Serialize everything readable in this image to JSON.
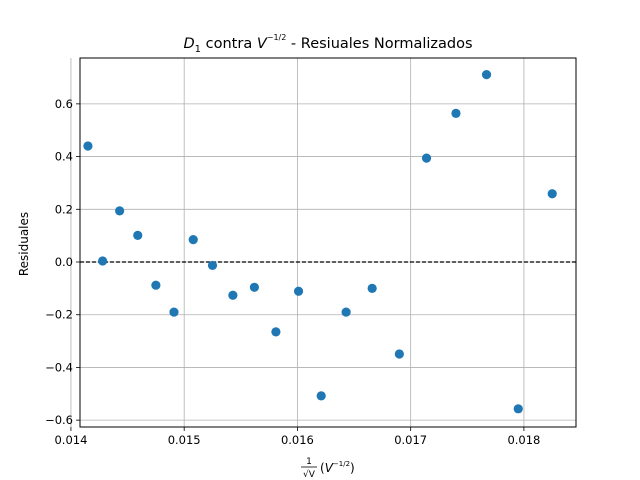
{
  "chart_data": {
    "type": "scatter",
    "title": {
      "d": "D",
      "sub": "1",
      "mid": " contra ",
      "v": "V",
      "exp": "−1/2",
      "rest": " - Resiuales Normalizados"
    },
    "xlabel": {
      "frac_num": "1",
      "frac_den": "√V",
      "unit_open": "(",
      "unit_v": "V",
      "unit_exp": "−1/2",
      "unit_close": ")"
    },
    "ylabel": "Residuales",
    "xlim": [
      0.01408,
      0.01846
    ],
    "ylim": [
      -0.626,
      0.774
    ],
    "xticks": [
      0.014,
      0.015,
      0.016,
      0.017,
      0.018
    ],
    "xtick_labels": [
      "0.014",
      "0.015",
      "0.016",
      "0.017",
      "0.018"
    ],
    "yticks": [
      -0.6,
      -0.4,
      -0.2,
      0.0,
      0.2,
      0.4,
      0.6
    ],
    "ytick_labels": [
      "−0.6",
      "−0.4",
      "−0.2",
      "0.0",
      "0.2",
      "0.4",
      "0.6"
    ],
    "grid": true,
    "reference_line": {
      "y": 0.0,
      "style": "dashed",
      "color": "#000000"
    },
    "marker_color": "#1f77b4",
    "points": [
      {
        "x": 0.01415,
        "y": 0.44
      },
      {
        "x": 0.01428,
        "y": 0.004
      },
      {
        "x": 0.01443,
        "y": 0.194
      },
      {
        "x": 0.01459,
        "y": 0.101
      },
      {
        "x": 0.01475,
        "y": -0.088
      },
      {
        "x": 0.01491,
        "y": -0.19
      },
      {
        "x": 0.01508,
        "y": 0.085
      },
      {
        "x": 0.01525,
        "y": -0.013
      },
      {
        "x": 0.01543,
        "y": -0.126
      },
      {
        "x": 0.01562,
        "y": -0.096
      },
      {
        "x": 0.01581,
        "y": -0.265
      },
      {
        "x": 0.01601,
        "y": -0.111
      },
      {
        "x": 0.01621,
        "y": -0.508
      },
      {
        "x": 0.01643,
        "y": -0.19
      },
      {
        "x": 0.01666,
        "y": -0.1
      },
      {
        "x": 0.0169,
        "y": -0.349
      },
      {
        "x": 0.01714,
        "y": 0.394
      },
      {
        "x": 0.0174,
        "y": 0.564
      },
      {
        "x": 0.01767,
        "y": 0.711
      },
      {
        "x": 0.01795,
        "y": -0.557
      },
      {
        "x": 0.01825,
        "y": 0.259
      }
    ]
  }
}
